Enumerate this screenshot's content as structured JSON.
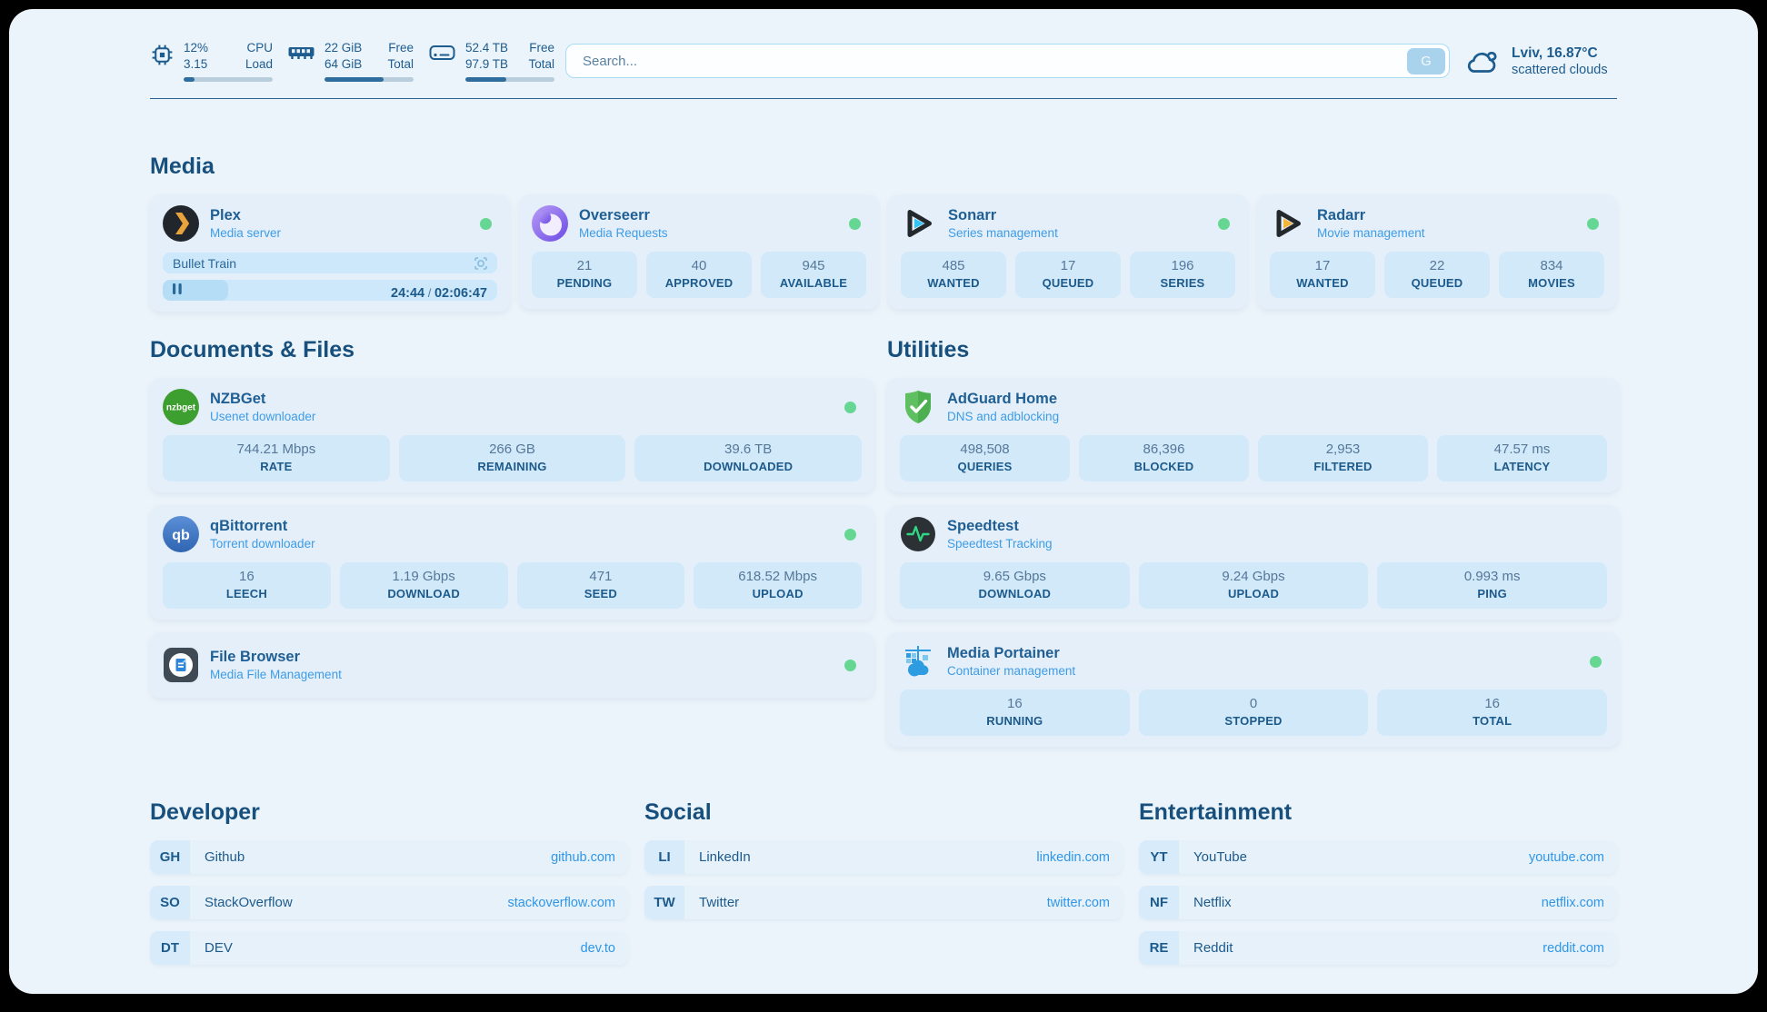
{
  "colors": {
    "page_bg": "#ecf4fb",
    "accent_navy": "#1d5c8f",
    "subtitle_blue": "#3d9ce6",
    "link_blue": "#2f96e8",
    "online_green": "#65d793",
    "tile_blue": "#d2e9f9",
    "progress_fill": "#2e6d9e"
  },
  "header": {
    "system_widgets": [
      {
        "icon": "cpu-icon",
        "values": [
          "12%",
          "3.15"
        ],
        "labels": [
          "CPU",
          "Load"
        ],
        "progress_pct": 12
      },
      {
        "icon": "ram-icon",
        "values": [
          "22 GiB",
          "64 GiB"
        ],
        "labels": [
          "Free",
          "Total"
        ],
        "progress_pct": 66
      },
      {
        "icon": "disk-icon",
        "values": [
          "52.4 TB",
          "97.9 TB"
        ],
        "labels": [
          "Free",
          "Total"
        ],
        "progress_pct": 46
      }
    ],
    "search": {
      "placeholder": "Search...",
      "button_label": "G"
    },
    "weather": {
      "icon": "cloud-icon",
      "location_temp": "Lviv, 16.87°C",
      "condition": "scattered clouds"
    }
  },
  "media_section": {
    "title": "Media",
    "apps": [
      {
        "icon": "plex-icon",
        "name": "Plex",
        "subtitle": "Media server",
        "online": true,
        "now_playing": {
          "title": "Bullet Train",
          "state": "paused",
          "position": "24:44",
          "duration": "02:06:47",
          "progress_pct": 19.5
        }
      },
      {
        "icon": "overseerr-icon",
        "name": "Overseerr",
        "subtitle": "Media Requests",
        "online": true,
        "stats": [
          {
            "value": "21",
            "label": "PENDING"
          },
          {
            "value": "40",
            "label": "APPROVED"
          },
          {
            "value": "945",
            "label": "AVAILABLE"
          }
        ]
      },
      {
        "icon": "sonarr-icon",
        "name": "Sonarr",
        "subtitle": "Series management",
        "online": true,
        "stats": [
          {
            "value": "485",
            "label": "WANTED"
          },
          {
            "value": "17",
            "label": "QUEUED"
          },
          {
            "value": "196",
            "label": "SERIES"
          }
        ]
      },
      {
        "icon": "radarr-icon",
        "name": "Radarr",
        "subtitle": "Movie management",
        "online": true,
        "stats": [
          {
            "value": "17",
            "label": "WANTED"
          },
          {
            "value": "22",
            "label": "QUEUED"
          },
          {
            "value": "834",
            "label": "MOVIES"
          }
        ]
      }
    ]
  },
  "app_columns": [
    {
      "title": "Documents & Files",
      "apps": [
        {
          "icon": "nzbget-icon",
          "name": "NZBGet",
          "subtitle": "Usenet downloader",
          "online": true,
          "stats": [
            {
              "value": "744.21 Mbps",
              "label": "RATE"
            },
            {
              "value": "266 GB",
              "label": "REMAINING"
            },
            {
              "value": "39.6 TB",
              "label": "DOWNLOADED"
            }
          ]
        },
        {
          "icon": "qbittorrent-icon",
          "name": "qBittorrent",
          "subtitle": "Torrent downloader",
          "online": true,
          "stats": [
            {
              "value": "16",
              "label": "LEECH"
            },
            {
              "value": "1.19 Gbps",
              "label": "DOWNLOAD"
            },
            {
              "value": "471",
              "label": "SEED"
            },
            {
              "value": "618.52 Mbps",
              "label": "UPLOAD"
            }
          ]
        },
        {
          "icon": "filebrowser-icon",
          "name": "File Browser",
          "subtitle": "Media File Management",
          "online": true
        }
      ]
    },
    {
      "title": "Utilities",
      "apps": [
        {
          "icon": "adguard-icon",
          "name": "AdGuard Home",
          "subtitle": "DNS and adblocking",
          "online": false,
          "stats": [
            {
              "value": "498,508",
              "label": "QUERIES"
            },
            {
              "value": "86,396",
              "label": "BLOCKED"
            },
            {
              "value": "2,953",
              "label": "FILTERED"
            },
            {
              "value": "47.57 ms",
              "label": "LATENCY"
            }
          ]
        },
        {
          "icon": "speedtest-icon",
          "name": "Speedtest",
          "subtitle": "Speedtest Tracking",
          "online": false,
          "stats": [
            {
              "value": "9.65 Gbps",
              "label": "DOWNLOAD"
            },
            {
              "value": "9.24 Gbps",
              "label": "UPLOAD"
            },
            {
              "value": "0.993 ms",
              "label": "PING"
            }
          ]
        },
        {
          "icon": "portainer-icon",
          "name": "Media Portainer",
          "subtitle": "Container management",
          "online": true,
          "stats": [
            {
              "value": "16",
              "label": "RUNNING"
            },
            {
              "value": "0",
              "label": "STOPPED"
            },
            {
              "value": "16",
              "label": "TOTAL"
            }
          ]
        }
      ]
    }
  ],
  "link_sections": [
    {
      "title": "Developer",
      "links": [
        {
          "abbr": "GH",
          "name": "Github",
          "url": "github.com"
        },
        {
          "abbr": "SO",
          "name": "StackOverflow",
          "url": "stackoverflow.com"
        },
        {
          "abbr": "DT",
          "name": "DEV",
          "url": "dev.to"
        }
      ]
    },
    {
      "title": "Social",
      "links": [
        {
          "abbr": "LI",
          "name": "LinkedIn",
          "url": "linkedin.com"
        },
        {
          "abbr": "TW",
          "name": "Twitter",
          "url": "twitter.com"
        }
      ]
    },
    {
      "title": "Entertainment",
      "links": [
        {
          "abbr": "YT",
          "name": "YouTube",
          "url": "youtube.com"
        },
        {
          "abbr": "NF",
          "name": "Netflix",
          "url": "netflix.com"
        },
        {
          "abbr": "RE",
          "name": "Reddit",
          "url": "reddit.com"
        }
      ]
    }
  ]
}
